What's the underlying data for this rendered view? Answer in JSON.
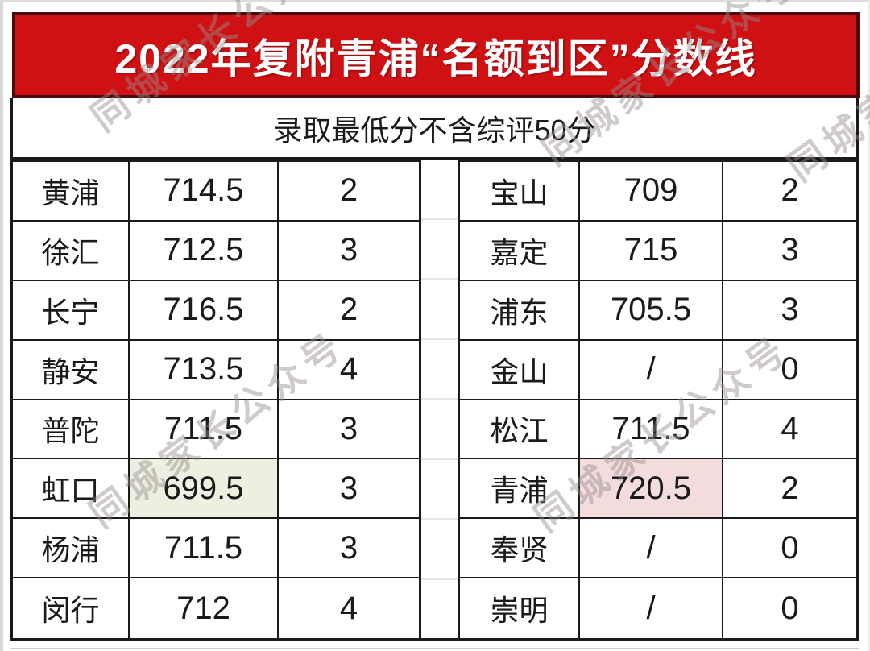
{
  "banner": {
    "title": "2022年复附青浦“名额到区”分数线",
    "bg_color": "#cf1114",
    "border_color": "#4a0d0e",
    "text_color": "#ffffff"
  },
  "subtitle": {
    "text": "录取最低分不含综评50分"
  },
  "watermark": {
    "text": "同城家长公众号",
    "color": "#9c9494"
  },
  "table": {
    "border_color": "#1a1a1a",
    "highlight_green": "#edf0e1",
    "highlight_pink": "#f3dcdb",
    "left_rows": [
      {
        "district": "黄浦",
        "score": "714.5",
        "quota": "2"
      },
      {
        "district": "徐汇",
        "score": "712.5",
        "quota": "3"
      },
      {
        "district": "长宁",
        "score": "716.5",
        "quota": "2"
      },
      {
        "district": "静安",
        "score": "713.5",
        "quota": "4"
      },
      {
        "district": "普陀",
        "score": "711.5",
        "quota": "3"
      },
      {
        "district": "虹口",
        "score": "699.5",
        "quota": "3"
      },
      {
        "district": "杨浦",
        "score": "711.5",
        "quota": "3"
      },
      {
        "district": "闵行",
        "score": "712",
        "quota": "4"
      }
    ],
    "right_rows": [
      {
        "district": "宝山",
        "score": "709",
        "quota": "2"
      },
      {
        "district": "嘉定",
        "score": "715",
        "quota": "3"
      },
      {
        "district": "浦东",
        "score": "705.5",
        "quota": "3"
      },
      {
        "district": "金山",
        "score": "/",
        "quota": "0"
      },
      {
        "district": "松江",
        "score": "711.5",
        "quota": "4"
      },
      {
        "district": "青浦",
        "score": "720.5",
        "quota": "2"
      },
      {
        "district": "奉贤",
        "score": "/",
        "quota": "0"
      },
      {
        "district": "崇明",
        "score": "/",
        "quota": "0"
      }
    ]
  }
}
